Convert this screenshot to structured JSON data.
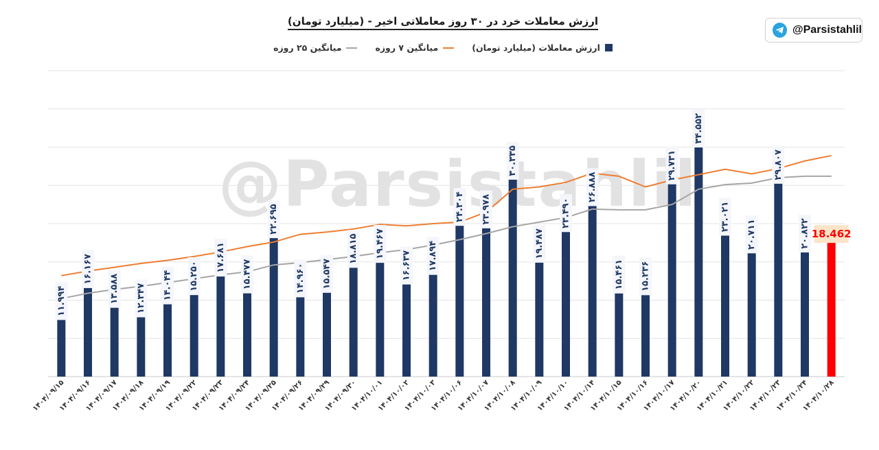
{
  "title": "ارزش معاملات خرد در ۳۰ روز معاملاتی اخیر - (میلیارد تومان)",
  "tag": {
    "handle": "@Parsistahlil",
    "icon": "telegram-icon"
  },
  "watermark": "@Parsistahlil",
  "legend": {
    "bars": "ارزش معاملات (میلیارد تومان)",
    "ma7": "میانگین ۷ روزه",
    "ma25": "میانگین ۲۵ روزه"
  },
  "colors": {
    "bar": "#1f3864",
    "last_bar": "#ff0000",
    "ma7": "#ed7d31",
    "ma25": "#a5a5a5",
    "last_label_bg": "#fde4c8"
  },
  "chart_data": {
    "type": "bar",
    "grid": true,
    "ylim": [
      0,
      40
    ],
    "legend_position": "top",
    "categories": [
      "۱۴۰۴/۰۹/۱۵",
      "۱۴۰۴/۰۹/۱۶",
      "۱۴۰۴/۰۹/۱۷",
      "۱۴۰۴/۰۹/۱۸",
      "۱۴۰۴/۰۹/۱۹",
      "۱۴۰۴/۰۹/۲۲",
      "۱۴۰۴/۰۹/۲۳",
      "۱۴۰۴/۰۹/۲۴",
      "۱۴۰۴/۰۹/۲۵",
      "۱۴۰۴/۰۹/۲۶",
      "۱۴۰۴/۰۹/۲۹",
      "۱۴۰۴/۰۹/۳۰",
      "۱۴۰۴/۱۰/۰۱",
      "۱۴۰۴/۱۰/۰۲",
      "۱۴۰۴/۱۰/۰۳",
      "۱۴۰۴/۱۰/۰۶",
      "۱۴۰۴/۱۰/۰۷",
      "۱۴۰۴/۱۰/۰۸",
      "۱۴۰۴/۱۰/۰۹",
      "۱۴۰۴/۱۰/۱۰",
      "۱۴۰۴/۱۰/۱۴",
      "۱۴۰۴/۱۰/۱۵",
      "۱۴۰۴/۱۰/۱۶",
      "۱۴۰۴/۱۰/۱۷",
      "۱۴۰۴/۱۰/۲۰",
      "۱۴۰۴/۱۰/۲۱",
      "۱۴۰۴/۱۰/۲۲",
      "۱۴۰۴/۱۰/۲۳",
      "۱۴۰۴/۱۰/۲۴",
      "۱۴۰۴/۱۰/۲۸"
    ],
    "values": [
      11.994,
      16.167,
      13.588,
      12.347,
      14.044,
      15.25,
      17.681,
      15.477,
      22.695,
      14.96,
      15.547,
      18.815,
      19.467,
      16.637,
      17.894,
      24.304,
      23.978,
      30.335,
      19.487,
      23.49,
      26.888,
      15.461,
      15.236,
      29.731,
      34.552,
      23.021,
      20.711,
      29.807,
      20.822,
      18.462
    ],
    "data_labels": [
      "۱۱.۹۹۴",
      "۱۶.۱۶۷",
      "۱۳.۵۸۸",
      "۱۲.۳۴۷",
      "۱۴.۰۴۴",
      "۱۵.۲۵۰",
      "۱۷.۶۸۱",
      "۱۵.۴۷۷",
      "۲۲.۶۹۵",
      "۱۴.۹۶۰",
      "۱۵.۵۴۷",
      "۱۸.۸۱۵",
      "۱۹.۴۶۷",
      "۱۶.۶۳۷",
      "۱۷.۸۹۴",
      "۲۴.۳۰۴",
      "۲۳.۹۷۸",
      "۳۰.۳۳۵",
      "۱۹.۴۸۷",
      "۲۳.۴۹۰",
      "۲۶.۸۸۸",
      "۱۵.۴۶۱",
      "۱۵.۲۳۶",
      "۲۹.۷۳۱",
      "۳۴.۵۵۲",
      "۲۳.۰۲۱",
      "۲۰.۷۱۱",
      "۲۹.۸۰۷",
      "۲۰.۸۲۲",
      "18.462"
    ],
    "series": [
      {
        "name": "میانگین ۷ روزه",
        "values": [
          13.2,
          13.8,
          14.3,
          14.8,
          15.2,
          15.7,
          16.3,
          17.0,
          17.6,
          18.6,
          18.9,
          19.3,
          19.9,
          19.7,
          20.0,
          20.2,
          21.5,
          24.5,
          24.8,
          25.4,
          26.6,
          26.2,
          24.8,
          25.7,
          26.4,
          27.1,
          26.5,
          27.2,
          28.2,
          28.9
        ]
      },
      {
        "name": "میانگین ۲۵ روزه",
        "values": [
          10.2,
          10.9,
          11.4,
          11.8,
          12.3,
          12.8,
          13.3,
          13.7,
          14.6,
          14.9,
          15.3,
          15.7,
          16.2,
          16.6,
          17.2,
          17.9,
          18.7,
          19.6,
          20.2,
          20.8,
          21.9,
          21.8,
          21.8,
          22.5,
          24.5,
          25.1,
          25.3,
          26.0,
          26.2,
          26.2
        ]
      }
    ]
  }
}
